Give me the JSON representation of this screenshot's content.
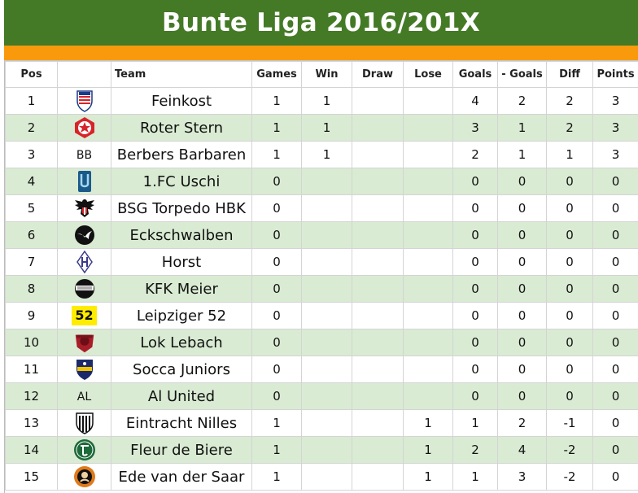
{
  "title": "Bunte Liga 2016/201X",
  "columns": [
    "Pos",
    "",
    "Team",
    "Games",
    "Win",
    "Draw",
    "Lose",
    "Goals",
    "- Goals",
    "Diff",
    "Points"
  ],
  "rows": [
    {
      "pos": "1",
      "logo": "feinkost-crest-icon",
      "logo_text": "",
      "team": "Feinkost",
      "games": "1",
      "win": "1",
      "draw": "",
      "lose": "",
      "goals": "4",
      "against": "2",
      "diff": "2",
      "points": "3"
    },
    {
      "pos": "2",
      "logo": "red-star-crest-icon",
      "logo_text": "",
      "team": "Roter Stern",
      "games": "1",
      "win": "1",
      "draw": "",
      "lose": "",
      "goals": "3",
      "against": "1",
      "diff": "2",
      "points": "3"
    },
    {
      "pos": "3",
      "logo": "text",
      "logo_text": "BB",
      "team": "Berbers Barbaren",
      "games": "1",
      "win": "1",
      "draw": "",
      "lose": "",
      "goals": "2",
      "against": "1",
      "diff": "1",
      "points": "3"
    },
    {
      "pos": "4",
      "logo": "uschi-crest-icon",
      "logo_text": "",
      "team": "1.FC Uschi",
      "games": "0",
      "win": "",
      "draw": "",
      "lose": "",
      "goals": "0",
      "against": "0",
      "diff": "0",
      "points": "0"
    },
    {
      "pos": "5",
      "logo": "eagle-crest-icon",
      "logo_text": "",
      "team": "BSG Torpedo HBK",
      "games": "0",
      "win": "",
      "draw": "",
      "lose": "",
      "goals": "0",
      "against": "0",
      "diff": "0",
      "points": "0"
    },
    {
      "pos": "6",
      "logo": "swallow-crest-icon",
      "logo_text": "",
      "team": "Eckschwalben",
      "games": "0",
      "win": "",
      "draw": "",
      "lose": "",
      "goals": "0",
      "against": "0",
      "diff": "0",
      "points": "0"
    },
    {
      "pos": "7",
      "logo": "horst-crest-icon",
      "logo_text": "",
      "team": "Horst",
      "games": "0",
      "win": "",
      "draw": "",
      "lose": "",
      "goals": "0",
      "against": "0",
      "diff": "0",
      "points": "0"
    },
    {
      "pos": "8",
      "logo": "kfk-crest-icon",
      "logo_text": "",
      "team": "KFK Meier",
      "games": "0",
      "win": "",
      "draw": "",
      "lose": "",
      "goals": "0",
      "against": "0",
      "diff": "0",
      "points": "0"
    },
    {
      "pos": "9",
      "logo": "badge-52",
      "logo_text": "52",
      "team": "Leipziger 52",
      "games": "0",
      "win": "",
      "draw": "",
      "lose": "",
      "goals": "0",
      "against": "0",
      "diff": "0",
      "points": "0"
    },
    {
      "pos": "10",
      "logo": "lok-crest-icon",
      "logo_text": "",
      "team": "Lok Lebach",
      "games": "0",
      "win": "",
      "draw": "",
      "lose": "",
      "goals": "0",
      "against": "0",
      "diff": "0",
      "points": "0"
    },
    {
      "pos": "11",
      "logo": "socca-crest-icon",
      "logo_text": "",
      "team": "Socca Juniors",
      "games": "0",
      "win": "",
      "draw": "",
      "lose": "",
      "goals": "0",
      "against": "0",
      "diff": "0",
      "points": "0"
    },
    {
      "pos": "12",
      "logo": "text",
      "logo_text": "AL",
      "team": "Al United",
      "games": "0",
      "win": "",
      "draw": "",
      "lose": "",
      "goals": "0",
      "against": "0",
      "diff": "0",
      "points": "0"
    },
    {
      "pos": "13",
      "logo": "eintracht-crest-icon",
      "logo_text": "",
      "team": "Eintracht Nilles",
      "games": "1",
      "win": "",
      "draw": "",
      "lose": "1",
      "goals": "1",
      "against": "2",
      "diff": "-1",
      "points": "0"
    },
    {
      "pos": "14",
      "logo": "fleur-crest-icon",
      "logo_text": "",
      "team": "Fleur de Biere",
      "games": "1",
      "win": "",
      "draw": "",
      "lose": "1",
      "goals": "2",
      "against": "4",
      "diff": "-2",
      "points": "0"
    },
    {
      "pos": "15",
      "logo": "ede-crest-icon",
      "logo_text": "",
      "team": "Ede van der Saar",
      "games": "1",
      "win": "",
      "draw": "",
      "lose": "1",
      "goals": "1",
      "against": "3",
      "diff": "-2",
      "points": "0"
    }
  ],
  "colors": {
    "title_bg": "#447a26",
    "accent_bar": "#f89a0c",
    "row_alt": "#d9ebd3",
    "row_plain": "#ffffff"
  }
}
